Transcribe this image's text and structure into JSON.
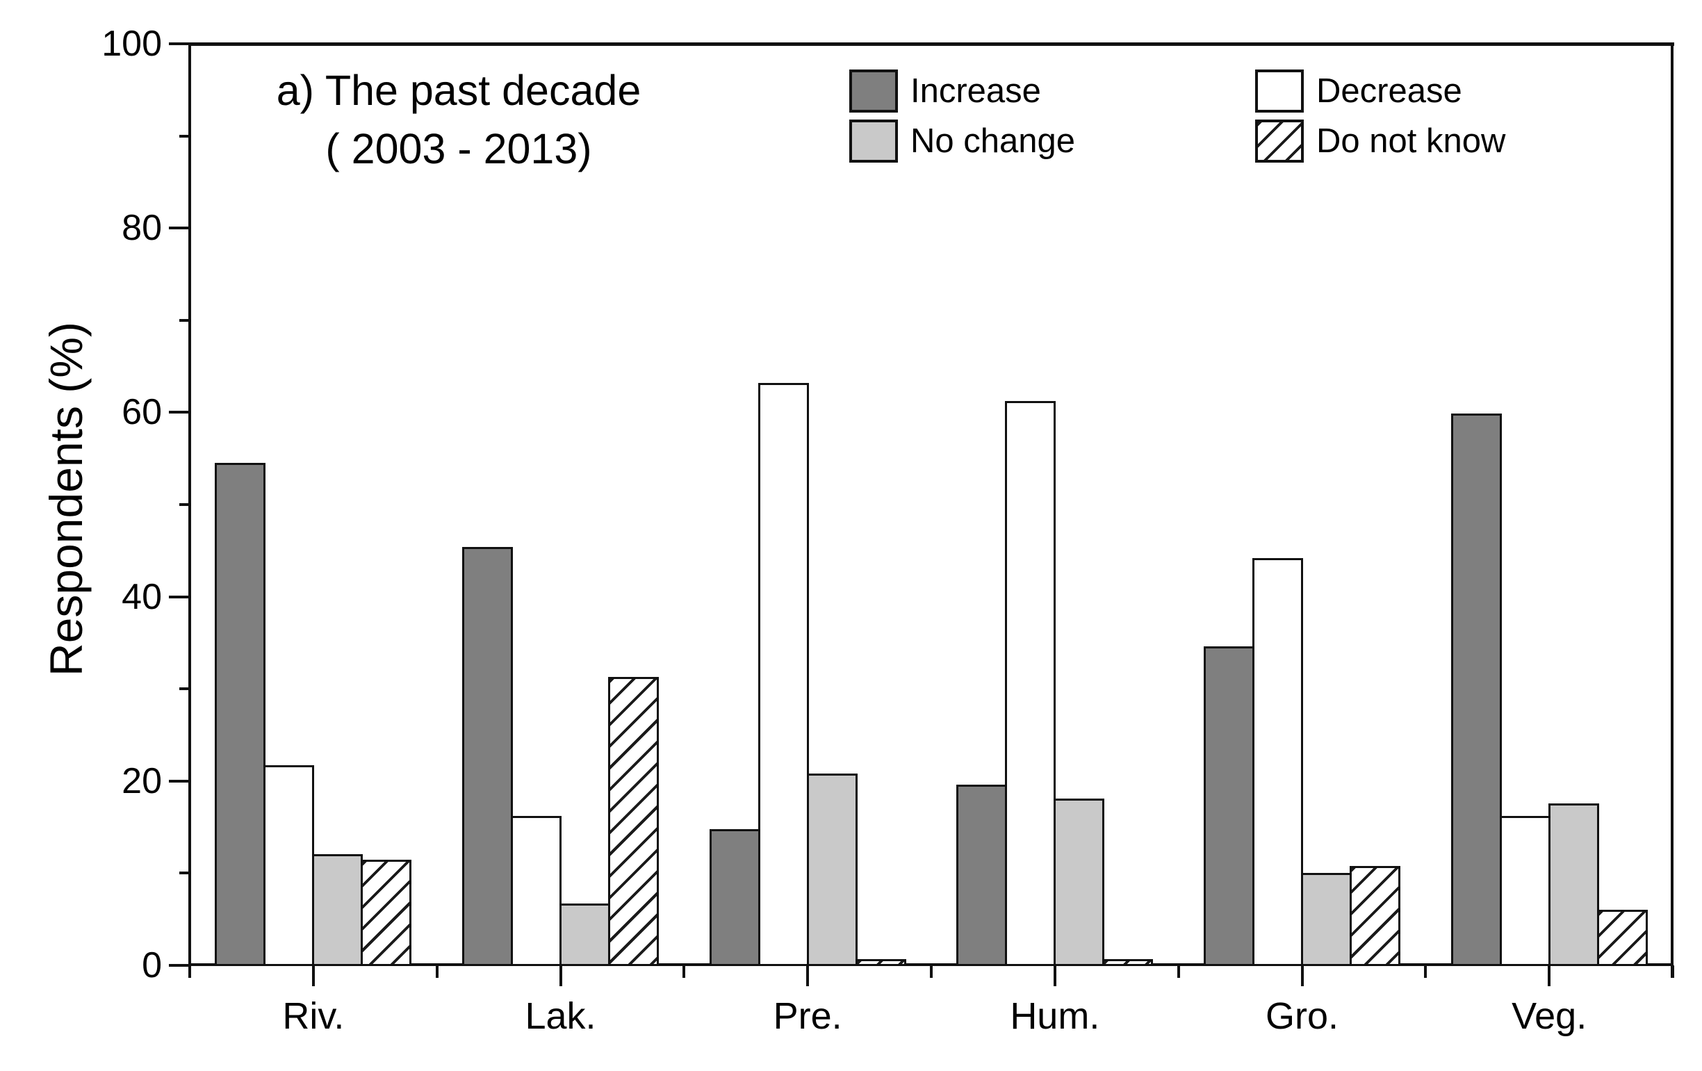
{
  "chart_data": {
    "type": "bar",
    "title_line1": "a) The past decade",
    "title_line2": "( 2003 - 2013)",
    "ylabel": "Respondents (%)",
    "ylim": [
      0,
      100
    ],
    "y_major_ticks": [
      0,
      20,
      40,
      60,
      80,
      100
    ],
    "y_minor_step": 10,
    "grid": false,
    "legend_position": "top-inside-two-columns",
    "categories": [
      "Riv.",
      "Lak.",
      "Pre.",
      "Hum.",
      "Gro.",
      "Veg."
    ],
    "series": [
      {
        "name": "Increase",
        "fill": "#7f7f7f",
        "pattern": "solid",
        "values": [
          54.5,
          45.4,
          14.8,
          19.6,
          34.6,
          59.9
        ]
      },
      {
        "name": "Decrease",
        "fill": "#ffffff",
        "pattern": "solid",
        "values": [
          21.7,
          16.2,
          63.2,
          61.2,
          44.2,
          16.2
        ]
      },
      {
        "name": "No change",
        "fill": "#c9c9c9",
        "pattern": "solid",
        "values": [
          12.1,
          6.7,
          20.8,
          18.1,
          10.0,
          17.6
        ]
      },
      {
        "name": "Do not know",
        "fill": "#ffffff",
        "pattern": "hatch",
        "values": [
          11.5,
          31.3,
          0.7,
          0.7,
          10.8,
          6.0
        ]
      }
    ],
    "colors": {
      "axis": "#111111",
      "text": "#000000",
      "background": "#ffffff",
      "bar_border": "#111111"
    }
  }
}
